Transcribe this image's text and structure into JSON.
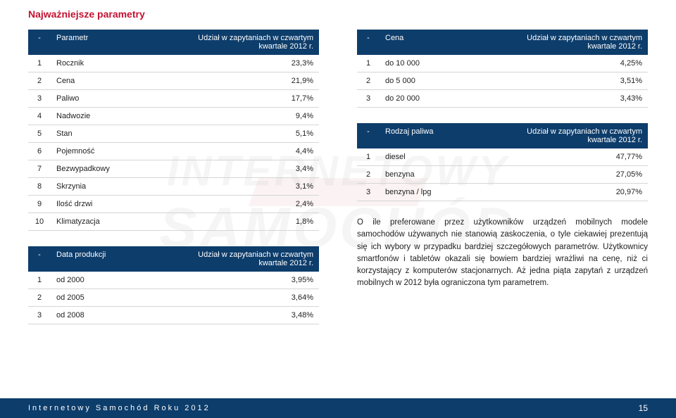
{
  "section_title": "Najważniejsze parametry",
  "colors": {
    "header_bg": "#0d3d6b",
    "header_fg": "#ffffff",
    "title": "#c41230",
    "row_border": "#d5d5d5",
    "text": "#222222",
    "footer_bg": "#0d3d6b"
  },
  "typography": {
    "title_fontsize": 14,
    "table_fontsize": 11,
    "body_fontsize": 11.5,
    "font_family": "Arial"
  },
  "tables": {
    "parametr": {
      "header": {
        "dash": "-",
        "col2": "Parametr",
        "col3": "Udział w zapytaniach w czwartym kwartale 2012 r."
      },
      "rows": [
        {
          "n": "1",
          "label": "Rocznik",
          "val": "23,3%"
        },
        {
          "n": "2",
          "label": "Cena",
          "val": "21,9%"
        },
        {
          "n": "3",
          "label": "Paliwo",
          "val": "17,7%"
        },
        {
          "n": "4",
          "label": "Nadwozie",
          "val": "9,4%"
        },
        {
          "n": "5",
          "label": "Stan",
          "val": "5,1%"
        },
        {
          "n": "6",
          "label": "Pojemność",
          "val": "4,4%"
        },
        {
          "n": "7",
          "label": "Bezwypadkowy",
          "val": "3,4%"
        },
        {
          "n": "8",
          "label": "Skrzynia",
          "val": "3,1%"
        },
        {
          "n": "9",
          "label": "Ilość drzwi",
          "val": "2,4%"
        },
        {
          "n": "10",
          "label": "Klimatyzacja",
          "val": "1,8%"
        }
      ]
    },
    "data_produkcji": {
      "header": {
        "dash": "-",
        "col2": "Data produkcji",
        "col3": "Udział w zapytaniach w czwartym kwartale 2012 r."
      },
      "rows": [
        {
          "n": "1",
          "label": "od 2000",
          "val": "3,95%"
        },
        {
          "n": "2",
          "label": "od 2005",
          "val": "3,64%"
        },
        {
          "n": "3",
          "label": "od 2008",
          "val": "3,48%"
        }
      ]
    },
    "cena": {
      "header": {
        "dash": "-",
        "col2": "Cena",
        "col3": "Udział w zapytaniach w czwartym kwartale 2012 r."
      },
      "rows": [
        {
          "n": "1",
          "label": "do 10 000",
          "val": "4,25%"
        },
        {
          "n": "2",
          "label": "do 5 000",
          "val": "3,51%"
        },
        {
          "n": "3",
          "label": "do 20 000",
          "val": "3,43%"
        }
      ]
    },
    "rodzaj_paliwa": {
      "header": {
        "dash": "-",
        "col2": "Rodzaj paliwa",
        "col3": "Udział w zapytaniach w czwartym kwartale 2012 r."
      },
      "rows": [
        {
          "n": "1",
          "label": "diesel",
          "val": "47,77%"
        },
        {
          "n": "2",
          "label": "benzyna",
          "val": "27,05%"
        },
        {
          "n": "3",
          "label": "benzyna / lpg",
          "val": "20,97%"
        }
      ]
    }
  },
  "body_text": "O ile preferowane przez użytkowników urządzeń mobilnych modele samochodów używanych nie stanowią zaskoczenia, o tyle ciekawiej prezentują się ich wybory w przypadku bardziej szczegółowych parametrów. Użytkownicy smartfonów i tabletów okazali się bowiem bardziej wrażliwi na cenę, niż ci korzystający z komputerów stacjonarnych. Aż jedna piąta zapytań z urządzeń mobilnych w 2012 była ograniczona tym parametrem.",
  "footer": {
    "left": "Internetowy Samochód Roku 2012",
    "page": "15"
  },
  "watermark": {
    "top": "INTERNETOWY",
    "bottom": "SAMOCHÓD",
    "sub": "ROKU 2013"
  }
}
